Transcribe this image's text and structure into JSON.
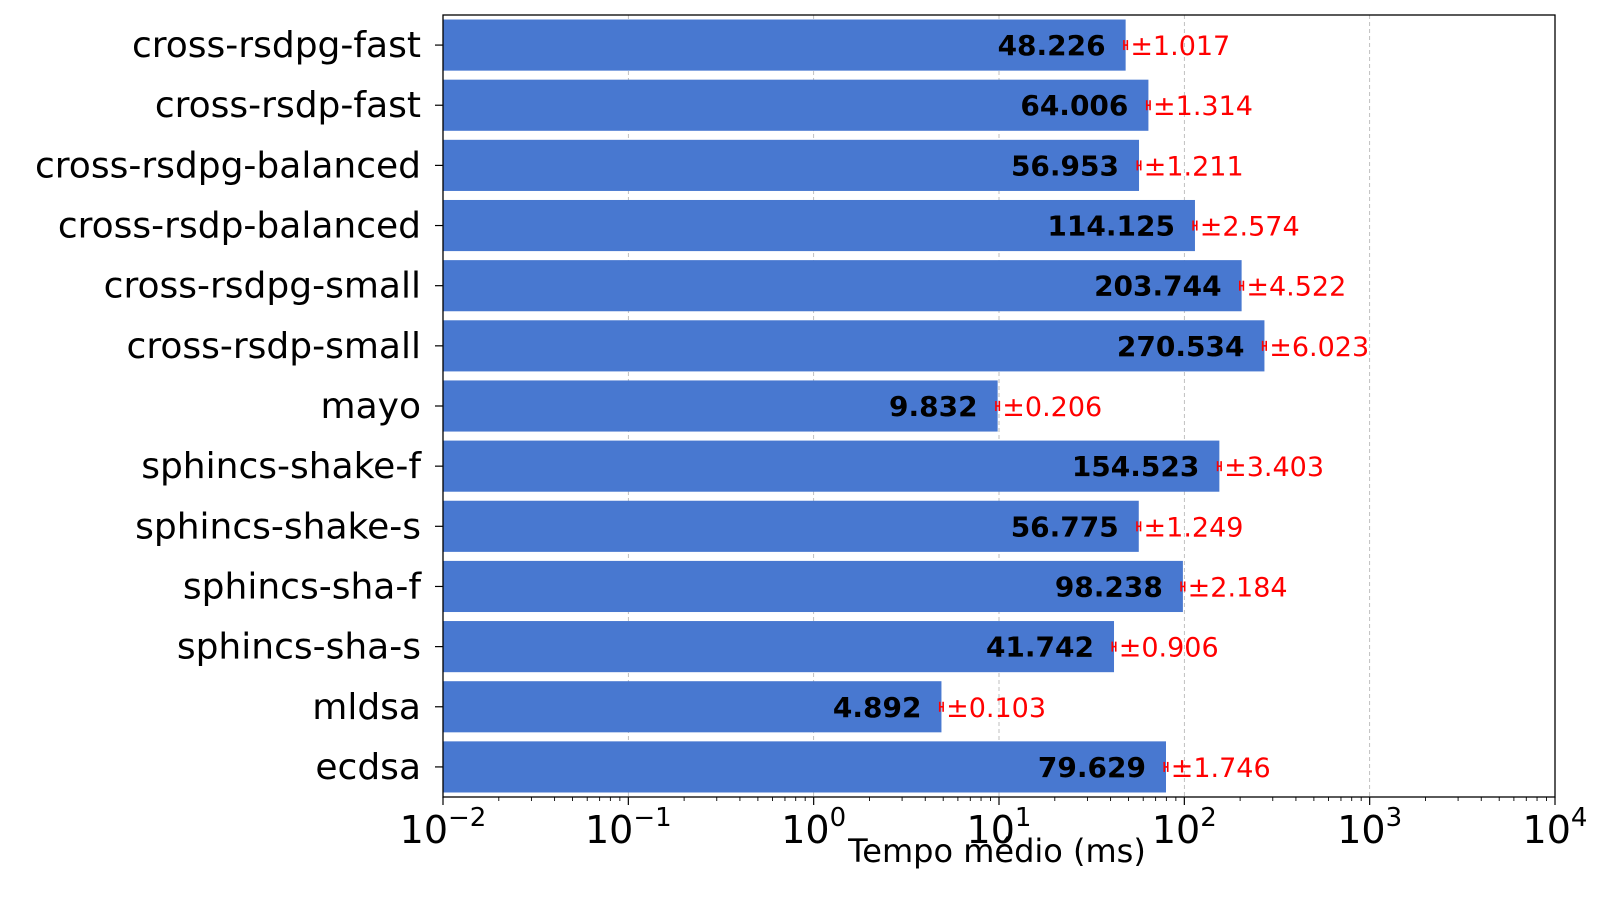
{
  "chart_data": {
    "type": "bar",
    "orientation": "horizontal",
    "title": "",
    "xlabel": "Tempo médio (ms)",
    "ylabel": "",
    "x_scale": "log",
    "xlim": [
      0.01,
      10000
    ],
    "x_ticks": [
      {
        "value": 0.01,
        "base": "10",
        "exp": "−2"
      },
      {
        "value": 0.1,
        "base": "10",
        "exp": "−1"
      },
      {
        "value": 1,
        "base": "10",
        "exp": "0"
      },
      {
        "value": 10,
        "base": "10",
        "exp": "1"
      },
      {
        "value": 100,
        "base": "10",
        "exp": "2"
      },
      {
        "value": 1000,
        "base": "10",
        "exp": "3"
      },
      {
        "value": 10000,
        "base": "10",
        "exp": "4"
      }
    ],
    "grid": "x-major, dashed",
    "categories": [
      "cross-rsdpg-fast",
      "cross-rsdp-fast",
      "cross-rsdpg-balanced",
      "cross-rsdp-balanced",
      "cross-rsdpg-small",
      "cross-rsdp-small",
      "mayo",
      "sphincs-shake-f",
      "sphincs-shake-s",
      "sphincs-sha-f",
      "sphincs-sha-s",
      "mldsa",
      "ecdsa"
    ],
    "values": [
      48.226,
      64.006,
      56.953,
      114.125,
      203.744,
      270.534,
      9.832,
      154.523,
      56.775,
      98.238,
      41.742,
      4.892,
      79.629
    ],
    "errors": [
      1.017,
      1.314,
      1.211,
      2.574,
      4.522,
      6.023,
      0.206,
      3.403,
      1.249,
      2.184,
      0.906,
      0.103,
      1.746
    ],
    "value_labels": [
      "48.226",
      "64.006",
      "56.953",
      "114.125",
      "203.744",
      "270.534",
      "9.832",
      "154.523",
      "56.775",
      "98.238",
      "41.742",
      "4.892",
      "79.629"
    ],
    "error_labels": [
      "±1.017",
      "±1.314",
      "±1.211",
      "±2.574",
      "±4.522",
      "±6.023",
      "±0.206",
      "±3.403",
      "±1.249",
      "±2.184",
      "±0.906",
      "±0.103",
      "±1.746"
    ],
    "colors": {
      "bar": "#4878d0",
      "error": "#ff0000",
      "value_label": "#000000",
      "grid": "#b0b0b0"
    }
  }
}
